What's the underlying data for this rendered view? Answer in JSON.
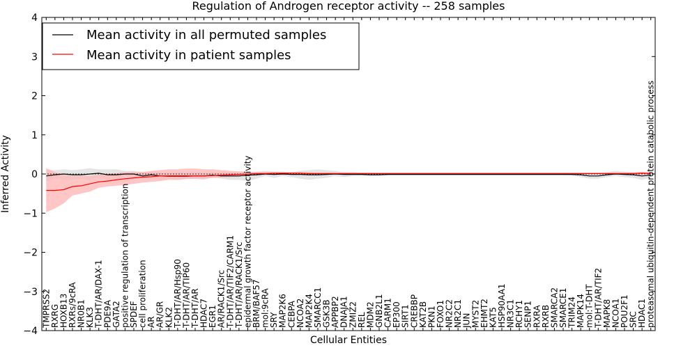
{
  "chart_data": {
    "type": "line",
    "title": "Regulation of Androgen receptor activity -- 258 samples",
    "xlabel": "Cellular Entities",
    "ylabel": "Inferred Activity",
    "ylim": [
      -4,
      4
    ],
    "yticks": [
      4,
      3,
      2,
      1,
      0,
      -1,
      -2,
      -3,
      -4
    ],
    "grid": false,
    "legend_position": "top-left",
    "categories": [
      "TMPRSS2",
      "RXRG",
      "HOXB13",
      "RXRs/9cRA",
      "NR0B1",
      "KLK3",
      "T-DHT/AR/DAX-1",
      "PDE9A",
      "GATA2",
      "positive regulation of transcription",
      "SPDEF",
      "cell proliferation",
      "AR",
      "AR/GR",
      "KLK2",
      "T-DHT/AR/Hsp90",
      "T-DHT/AR/TIP60",
      "T-DHT/AR",
      "HDAC7",
      "EGR1",
      "AR/RACK1/Src",
      "T-DHT/AR/TIF2/CARM1",
      "T-DHT/AR/RACK1/Src",
      "epidermal growth factor receptor activity",
      "BRM/BAF57",
      "mol:9cRA",
      "SRY",
      "MAP2K6",
      "CEBPA",
      "NCOA2",
      "MAP2K4",
      "SMARCC1",
      "GSK3B",
      "APPBP2",
      "DNAJA1",
      "ZMIZ2",
      "REL",
      "MDM2",
      "GNB2L1",
      "CARM1",
      "EP300",
      "SIRT1",
      "CREBBP",
      "KAT2B",
      "PKN1",
      "FOXO1",
      "NR2C2",
      "NR2C1",
      "JUN",
      "MYST2",
      "EHMT2",
      "KAT5",
      "HSP90AA1",
      "NR3C1",
      "RCHY1",
      "SENP1",
      "RXRA",
      "RXRB",
      "SMARCA2",
      "SMARCE1",
      "TRIM24",
      "MAPK14",
      "mol:T-DHT",
      "T-DHT/AR/TIF2",
      "MAPK8",
      "NCOA1",
      "POU2F1",
      "SRC",
      "HDAC1",
      "proteasomal ubiquitin-dependent protein catabolic process"
    ],
    "series": [
      {
        "name": "Mean activity in all permuted samples",
        "color": "#000000",
        "band_color": "#d3d3d3",
        "values": [
          -0.05,
          -0.02,
          0.0,
          -0.02,
          -0.02,
          0.0,
          0.02,
          -0.02,
          -0.02,
          0.0,
          0.0,
          -0.05,
          -0.02,
          -0.05,
          -0.05,
          -0.05,
          -0.05,
          -0.05,
          -0.05,
          -0.03,
          -0.05,
          -0.05,
          -0.05,
          -0.03,
          -0.02,
          0.0,
          -0.01,
          0.0,
          -0.01,
          -0.01,
          -0.02,
          -0.02,
          -0.01,
          0.0,
          -0.01,
          -0.01,
          -0.01,
          -0.02,
          -0.02,
          -0.01,
          -0.01,
          -0.01,
          -0.01,
          -0.01,
          -0.01,
          -0.01,
          -0.01,
          -0.01,
          -0.01,
          -0.01,
          -0.01,
          -0.01,
          -0.01,
          -0.01,
          -0.01,
          -0.01,
          -0.01,
          -0.01,
          -0.01,
          -0.01,
          -0.01,
          -0.02,
          -0.05,
          -0.05,
          -0.02,
          0.0,
          -0.01,
          -0.02,
          -0.05,
          -0.03
        ],
        "lower": [
          -0.2,
          -0.12,
          -0.15,
          -0.15,
          -0.12,
          -0.15,
          -0.08,
          -0.15,
          -0.12,
          -0.05,
          -0.05,
          -0.12,
          -0.1,
          -0.15,
          -0.12,
          -0.15,
          -0.12,
          -0.12,
          -0.15,
          -0.08,
          -0.12,
          -0.15,
          -0.15,
          -0.18,
          -0.12,
          -0.05,
          -0.1,
          -0.05,
          -0.08,
          -0.12,
          -0.15,
          -0.12,
          -0.1,
          -0.05,
          -0.08,
          -0.05,
          -0.04,
          -0.05,
          -0.04,
          -0.03,
          -0.03,
          -0.03,
          -0.03,
          -0.03,
          -0.03,
          -0.03,
          -0.03,
          -0.03,
          -0.03,
          -0.03,
          -0.03,
          -0.03,
          -0.03,
          -0.03,
          -0.03,
          -0.03,
          -0.03,
          -0.03,
          -0.03,
          -0.03,
          -0.04,
          -0.08,
          -0.12,
          -0.12,
          -0.08,
          -0.05,
          -0.08,
          -0.1,
          -0.15,
          -0.1
        ],
        "upper": [
          0.1,
          0.1,
          0.12,
          0.1,
          0.12,
          0.15,
          0.12,
          0.12,
          0.12,
          0.08,
          0.08,
          0.05,
          0.06,
          0.05,
          0.05,
          0.05,
          0.05,
          0.05,
          0.05,
          0.05,
          0.05,
          0.05,
          0.05,
          0.05,
          0.06,
          0.08,
          0.07,
          0.06,
          0.05,
          0.08,
          0.1,
          0.12,
          0.1,
          0.08,
          0.05,
          0.05,
          0.03,
          0.03,
          0.02,
          0.02,
          0.02,
          0.02,
          0.02,
          0.02,
          0.02,
          0.02,
          0.02,
          0.02,
          0.02,
          0.02,
          0.02,
          0.02,
          0.02,
          0.02,
          0.02,
          0.02,
          0.02,
          0.02,
          0.02,
          0.02,
          0.02,
          0.02,
          0.02,
          0.03,
          0.05,
          0.08,
          0.06,
          0.05,
          0.05,
          0.05
        ]
      },
      {
        "name": "Mean activity in patient samples",
        "color": "#ff0000",
        "band_color": "#ffb3b3",
        "values": [
          -0.42,
          -0.42,
          -0.4,
          -0.32,
          -0.3,
          -0.25,
          -0.2,
          -0.18,
          -0.15,
          -0.12,
          -0.1,
          -0.08,
          -0.07,
          -0.05,
          -0.06,
          -0.06,
          -0.06,
          -0.05,
          -0.05,
          -0.04,
          -0.03,
          -0.02,
          -0.01,
          0.0,
          0.01,
          0.01,
          0.02,
          0.02,
          0.02,
          0.02,
          0.01,
          0.01,
          0.01,
          0.01,
          0.01,
          0.01,
          0.01,
          0.01,
          0.01,
          0.01,
          0.01,
          0.01,
          0.01,
          0.01,
          0.01,
          0.01,
          0.01,
          0.01,
          0.01,
          0.01,
          0.01,
          0.01,
          0.01,
          0.01,
          0.01,
          0.01,
          0.01,
          0.01,
          0.01,
          0.01,
          0.01,
          0.01,
          0.01,
          0.01,
          0.01,
          0.01,
          0.01,
          0.01,
          0.02,
          0.01
        ],
        "lower": [
          -0.98,
          -0.88,
          -0.75,
          -0.55,
          -0.5,
          -0.45,
          -0.35,
          -0.32,
          -0.3,
          -0.28,
          -0.25,
          -0.22,
          -0.2,
          -0.18,
          -0.15,
          -0.15,
          -0.13,
          -0.12,
          -0.12,
          -0.1,
          -0.09,
          -0.08,
          -0.06,
          -0.05,
          -0.03,
          -0.02,
          -0.02,
          -0.02,
          -0.01,
          -0.01,
          -0.01,
          -0.01,
          -0.01,
          -0.01,
          -0.01,
          -0.01,
          -0.01,
          -0.01,
          -0.01,
          -0.01,
          -0.01,
          -0.01,
          -0.01,
          -0.01,
          -0.01,
          -0.01,
          -0.01,
          -0.01,
          -0.01,
          -0.01,
          -0.01,
          -0.01,
          -0.01,
          -0.01,
          -0.01,
          -0.01,
          -0.01,
          -0.01,
          -0.01,
          -0.01,
          -0.01,
          -0.01,
          -0.01,
          -0.01,
          -0.01,
          -0.01,
          -0.01,
          -0.01,
          -0.01,
          -0.01
        ],
        "upper": [
          0.15,
          0.05,
          -0.02,
          -0.05,
          -0.05,
          -0.05,
          -0.02,
          0.0,
          0.02,
          0.05,
          0.05,
          0.05,
          0.08,
          0.1,
          0.12,
          0.12,
          0.14,
          0.14,
          0.12,
          0.12,
          0.1,
          0.08,
          0.07,
          0.06,
          0.05,
          0.05,
          0.05,
          0.05,
          0.05,
          0.05,
          0.04,
          0.03,
          0.03,
          0.03,
          0.03,
          0.03,
          0.03,
          0.03,
          0.03,
          0.03,
          0.03,
          0.03,
          0.03,
          0.03,
          0.03,
          0.03,
          0.03,
          0.03,
          0.03,
          0.03,
          0.03,
          0.03,
          0.03,
          0.03,
          0.03,
          0.03,
          0.03,
          0.03,
          0.03,
          0.03,
          0.03,
          0.03,
          0.03,
          0.03,
          0.03,
          0.03,
          0.03,
          0.03,
          0.06,
          0.05
        ]
      }
    ]
  }
}
